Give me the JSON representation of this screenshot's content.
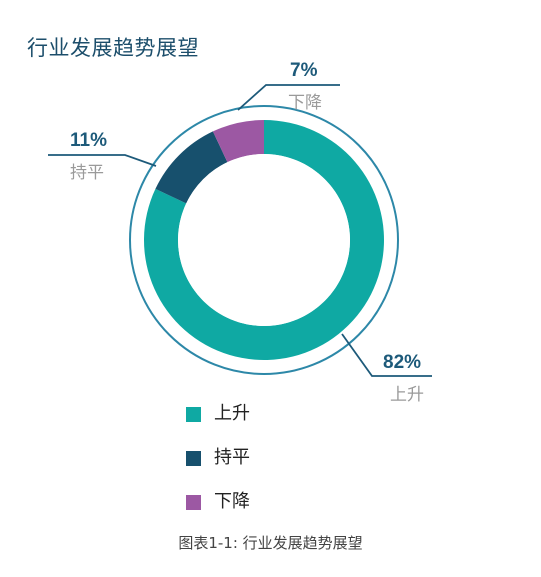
{
  "title": "行业发展趋势展望",
  "caption": "图表1-1: 行业发展趋势展望",
  "chart_data": {
    "type": "pie",
    "style": "donut",
    "title": "行业发展趋势展望",
    "start_angle_deg": 0,
    "direction": "clockwise",
    "slices": [
      {
        "label": "上升",
        "value": 82,
        "value_label": "82%",
        "color": "#0fa9a3"
      },
      {
        "label": "持平",
        "value": 11,
        "value_label": "11%",
        "color": "#17506d"
      },
      {
        "label": "下降",
        "value": 7,
        "value_label": "7%",
        "color": "#9c58a3"
      }
    ],
    "outline_color": "#2d88a8",
    "leader_color": "#1d5a7a",
    "legend_position": "bottom"
  }
}
